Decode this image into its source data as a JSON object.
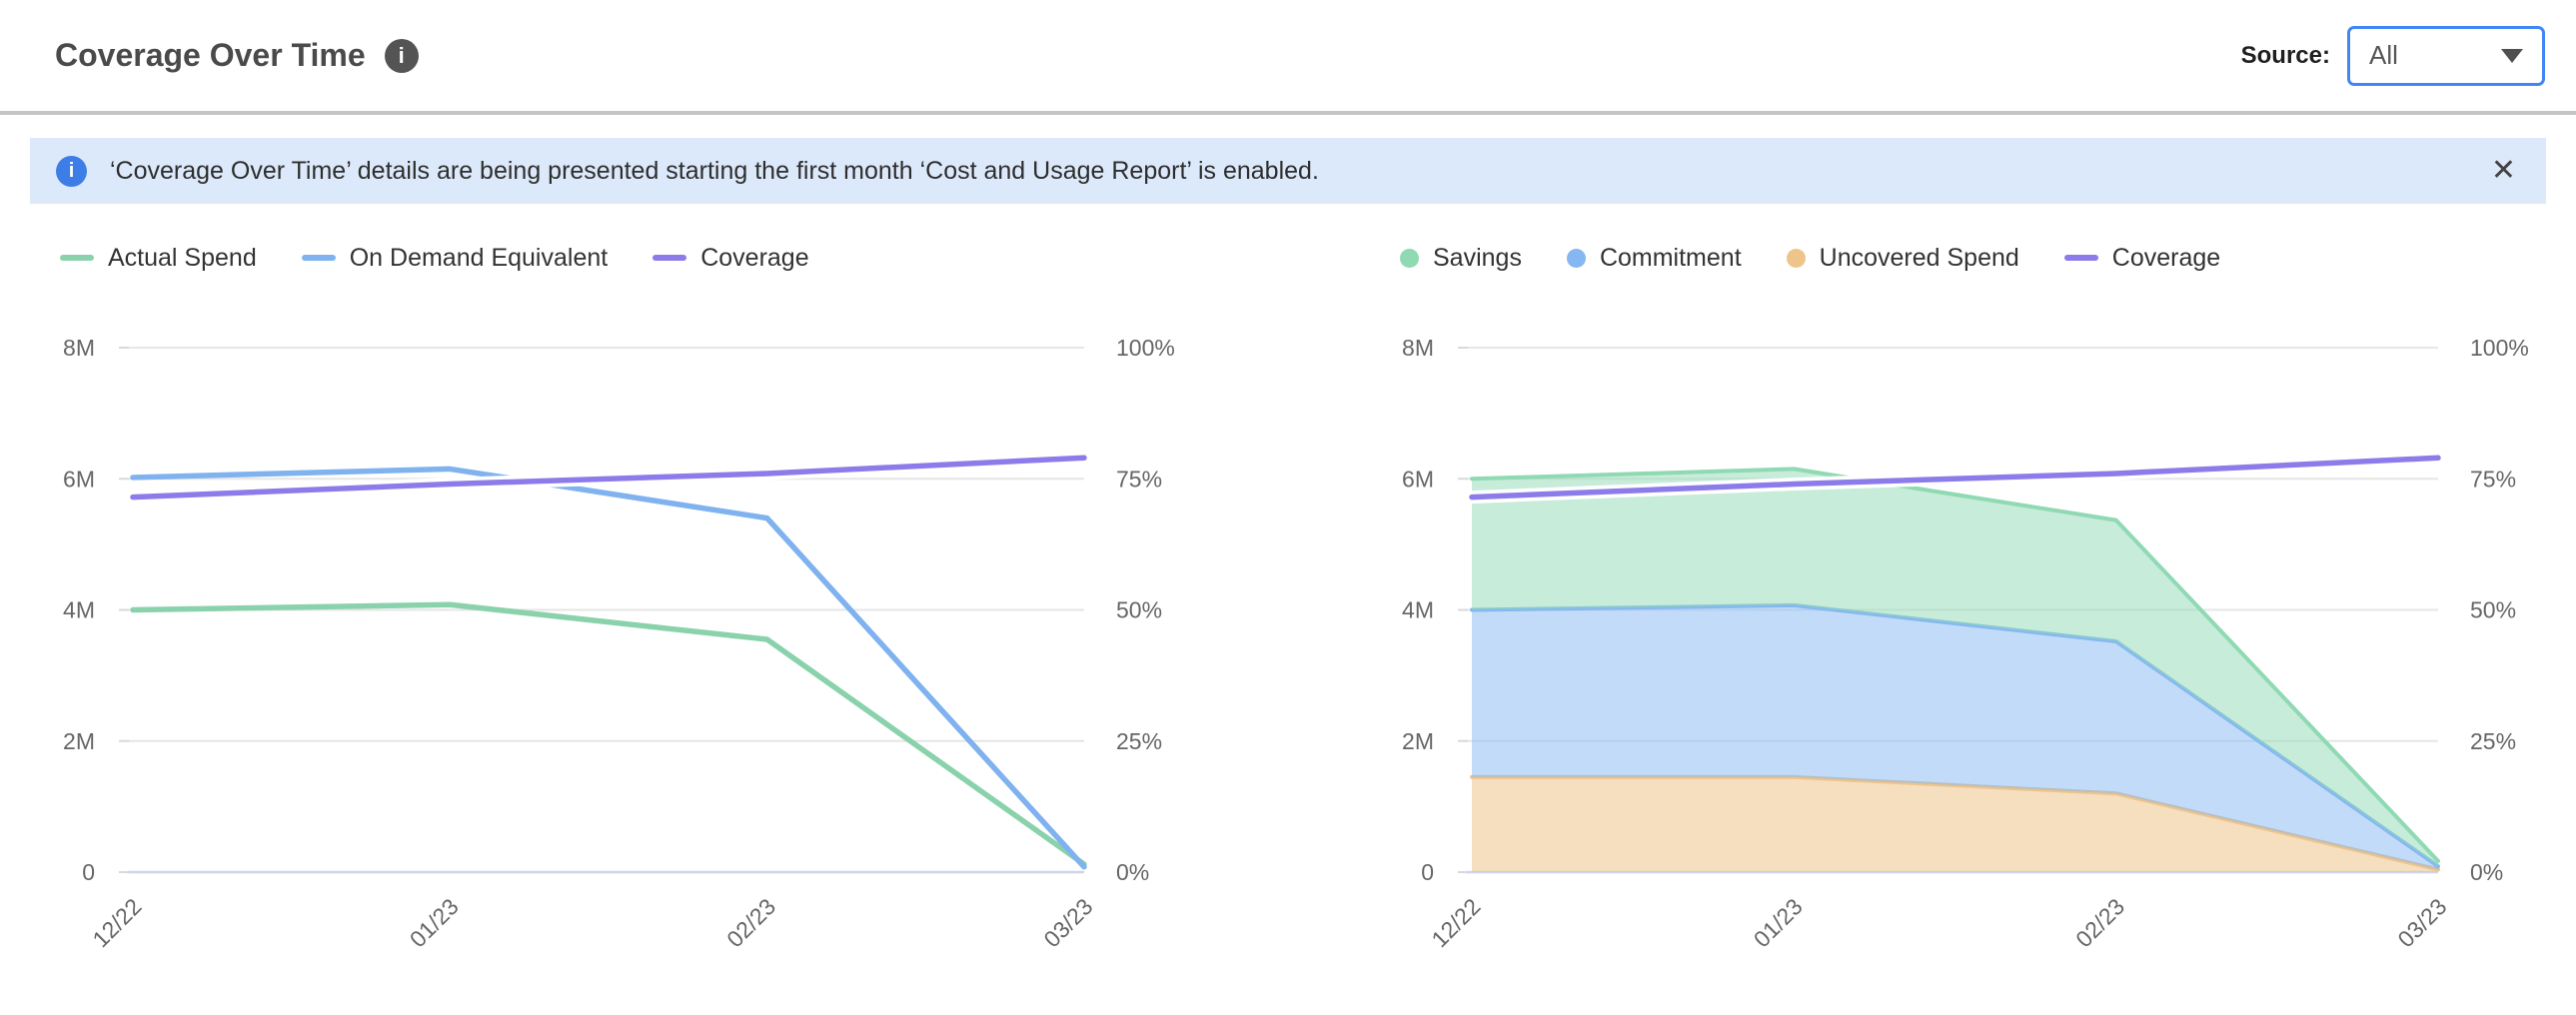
{
  "header": {
    "title": "Coverage Over Time",
    "source_label": "Source:",
    "source_value": "All"
  },
  "banner": {
    "message": "‘Coverage Over Time’ details are being presented starting the first month ‘Cost and Usage Report’ is enabled.",
    "close_glyph": "✕"
  },
  "colors": {
    "green": "#8ad2ab",
    "blue": "#7fb2ef",
    "purple": "#8c7ce9",
    "orange": "#eec48a",
    "grid": "#e6e6e6",
    "zero_axis": "#ccd6eb",
    "banner_bg": "#dce9fb",
    "dropdown_border": "#4186f5"
  },
  "chart_data": [
    {
      "type": "line",
      "title": "",
      "legend_position": "top",
      "grid": true,
      "categories": [
        "12/22",
        "01/23",
        "02/23",
        "03/23"
      ],
      "y_left": {
        "max": 8000000,
        "ticks": [
          {
            "value": 0,
            "label": "0"
          },
          {
            "value": 2000000,
            "label": "2M"
          },
          {
            "value": 4000000,
            "label": "4M"
          },
          {
            "value": 6000000,
            "label": "6M"
          },
          {
            "value": 8000000,
            "label": "8M"
          }
        ]
      },
      "y_right": {
        "max": 100,
        "ticks": [
          {
            "value": 0,
            "label": "0%"
          },
          {
            "value": 25,
            "label": "25%"
          },
          {
            "value": 50,
            "label": "50%"
          },
          {
            "value": 75,
            "label": "75%"
          },
          {
            "value": 100,
            "label": "100%"
          }
        ]
      },
      "series": [
        {
          "name": "Actual Spend",
          "type": "line",
          "axis": "left",
          "marker": "line",
          "color": "#8ad2ab",
          "values": [
            4000000,
            4080000,
            3550000,
            120000
          ]
        },
        {
          "name": "On Demand Equivalent",
          "type": "line",
          "axis": "left",
          "marker": "line",
          "color": "#7fb2ef",
          "values": [
            6020000,
            6150000,
            5400000,
            80000
          ]
        },
        {
          "name": "Coverage",
          "type": "line",
          "axis": "right",
          "marker": "line",
          "color": "#8c7ce9",
          "halo": true,
          "values": [
            71.5,
            74,
            76,
            79
          ]
        }
      ]
    },
    {
      "type": "area",
      "title": "",
      "legend_position": "top",
      "grid": true,
      "categories": [
        "12/22",
        "01/23",
        "02/23",
        "03/23"
      ],
      "y_left": {
        "max": 8000000,
        "ticks": [
          {
            "value": 0,
            "label": "0"
          },
          {
            "value": 2000000,
            "label": "2M"
          },
          {
            "value": 4000000,
            "label": "4M"
          },
          {
            "value": 6000000,
            "label": "6M"
          },
          {
            "value": 8000000,
            "label": "8M"
          }
        ]
      },
      "y_right": {
        "max": 100,
        "ticks": [
          {
            "value": 0,
            "label": "0%"
          },
          {
            "value": 25,
            "label": "25%"
          },
          {
            "value": 50,
            "label": "50%"
          },
          {
            "value": 75,
            "label": "75%"
          },
          {
            "value": 100,
            "label": "100%"
          }
        ]
      },
      "series": [
        {
          "name": "Savings",
          "type": "area",
          "stack": 3,
          "marker": "circle",
          "color": "#8fd9b3",
          "fill": "rgba(143,217,179,0.5)",
          "values": [
            2000000,
            2080000,
            1850000,
            80000
          ]
        },
        {
          "name": "Commitment",
          "type": "area",
          "stack": 2,
          "marker": "circle",
          "color": "#85b7f2",
          "fill": "rgba(133,183,242,0.5)",
          "values": [
            2550000,
            2620000,
            2320000,
            50000
          ]
        },
        {
          "name": "Uncovered Spend",
          "type": "area",
          "stack": 1,
          "marker": "circle",
          "color": "#eec48a",
          "fill": "rgba(238,196,138,0.55)",
          "values": [
            1450000,
            1450000,
            1200000,
            40000
          ]
        },
        {
          "name": "Coverage",
          "type": "line",
          "axis": "right",
          "marker": "line",
          "color": "#8c7ce9",
          "halo": true,
          "values": [
            71.5,
            74,
            76,
            79
          ]
        }
      ]
    }
  ]
}
